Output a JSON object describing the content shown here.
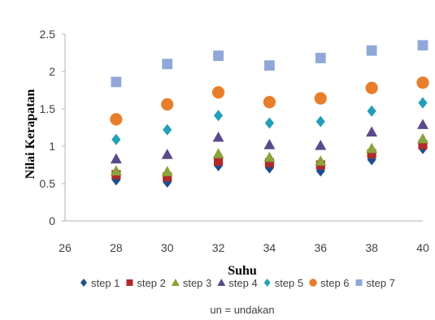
{
  "chart_data": {
    "type": "scatter",
    "xlabel": "Suhu",
    "ylabel": "Nilai Kerapatan",
    "xlim": [
      26,
      40
    ],
    "ylim": [
      0,
      2.5
    ],
    "xticks": [
      "26",
      "28",
      "30",
      "32",
      "34",
      "36",
      "38",
      "40"
    ],
    "yticks": [
      "0",
      "0.5",
      "1",
      "1.5",
      "2",
      "2.5"
    ],
    "grid": false,
    "legend_position": "bottom",
    "x": [
      28,
      30,
      32,
      34,
      36,
      38,
      40
    ],
    "series": [
      {
        "name": "step 1",
        "marker": "diamond",
        "color": "#1f4e8c",
        "values": [
          0.55,
          0.52,
          0.74,
          0.71,
          0.67,
          0.82,
          0.97
        ]
      },
      {
        "name": "step 2",
        "marker": "square",
        "color": "#b02a2a",
        "values": [
          0.62,
          0.59,
          0.8,
          0.78,
          0.75,
          0.9,
          1.02
        ]
      },
      {
        "name": "step 3",
        "marker": "triangle",
        "color": "#8aa33a",
        "values": [
          0.67,
          0.66,
          0.9,
          0.85,
          0.8,
          0.97,
          1.1
        ]
      },
      {
        "name": "step 4",
        "marker": "triangle",
        "color": "#5b4a8a",
        "values": [
          0.83,
          0.89,
          1.12,
          1.02,
          1.01,
          1.19,
          1.29
        ]
      },
      {
        "name": "step 5",
        "marker": "diamond",
        "color": "#23a0b8",
        "values": [
          1.09,
          1.22,
          1.41,
          1.31,
          1.33,
          1.47,
          1.58
        ]
      },
      {
        "name": "step 6",
        "marker": "circle",
        "color": "#e87d2a",
        "values": [
          1.36,
          1.56,
          1.72,
          1.59,
          1.64,
          1.78,
          1.85
        ]
      },
      {
        "name": "step 7",
        "marker": "square",
        "color": "#90a8d8",
        "values": [
          1.86,
          2.1,
          2.21,
          2.08,
          2.18,
          2.28,
          2.35
        ]
      }
    ],
    "annotation": "un = undakan"
  }
}
